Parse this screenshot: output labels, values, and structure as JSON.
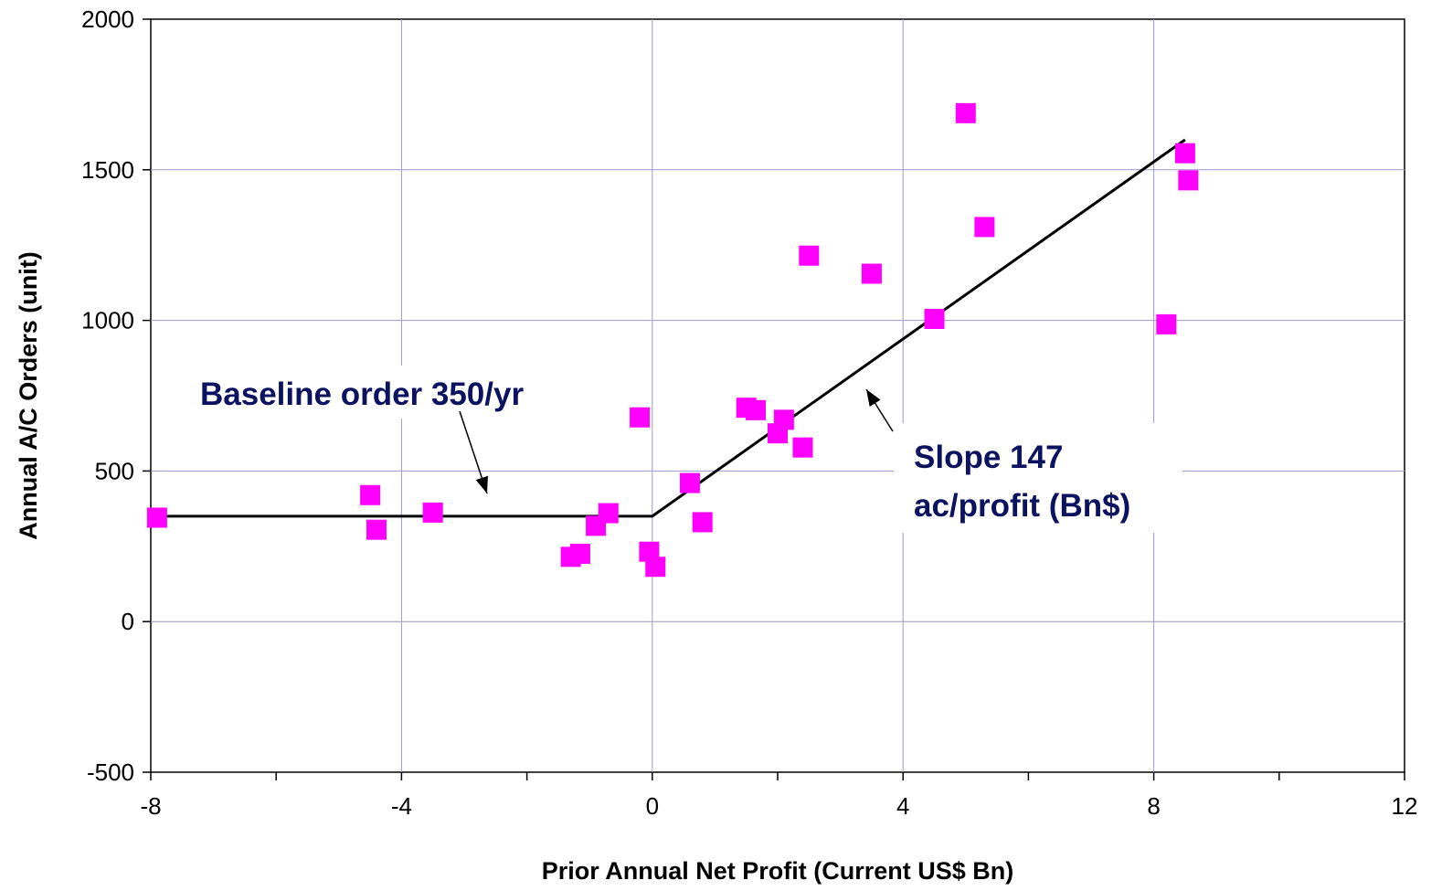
{
  "chart_data": {
    "type": "scatter",
    "title": "",
    "xlabel": "Prior Annual Net Profit (Current US$ Bn)",
    "ylabel": "Annual A/C Orders (unit)",
    "xlim": [
      -8,
      12
    ],
    "ylim": [
      -500,
      2000
    ],
    "x_ticks": [
      "-8",
      "-4",
      "0",
      "4",
      "8",
      "12"
    ],
    "y_ticks": [
      "-500",
      "0",
      "500",
      "1000",
      "1500",
      "2000"
    ],
    "grid": true,
    "colors": {
      "points": "#ff00ff",
      "line": "#000000",
      "grid": "#9999cc",
      "annotation": "#0b1260"
    },
    "points": [
      {
        "x": -7.9,
        "y": 345
      },
      {
        "x": -4.5,
        "y": 420
      },
      {
        "x": -4.4,
        "y": 305
      },
      {
        "x": -3.5,
        "y": 362
      },
      {
        "x": -1.3,
        "y": 215
      },
      {
        "x": -1.15,
        "y": 225
      },
      {
        "x": -0.9,
        "y": 318
      },
      {
        "x": -0.7,
        "y": 360
      },
      {
        "x": -0.2,
        "y": 678
      },
      {
        "x": -0.05,
        "y": 232
      },
      {
        "x": 0.05,
        "y": 182
      },
      {
        "x": 0.6,
        "y": 460
      },
      {
        "x": 0.8,
        "y": 330
      },
      {
        "x": 1.5,
        "y": 710
      },
      {
        "x": 1.65,
        "y": 702
      },
      {
        "x": 2.0,
        "y": 625
      },
      {
        "x": 2.1,
        "y": 670
      },
      {
        "x": 2.4,
        "y": 578
      },
      {
        "x": 2.5,
        "y": 1215
      },
      {
        "x": 3.5,
        "y": 1155
      },
      {
        "x": 4.5,
        "y": 1005
      },
      {
        "x": 5.0,
        "y": 1688
      },
      {
        "x": 5.3,
        "y": 1310
      },
      {
        "x": 8.2,
        "y": 987
      },
      {
        "x": 8.5,
        "y": 1555
      },
      {
        "x": 8.55,
        "y": 1465
      }
    ],
    "fit_line": [
      {
        "x": -8,
        "y": 350
      },
      {
        "x": 0,
        "y": 350
      },
      {
        "x": 8.5,
        "y": 1600
      }
    ],
    "annotations": {
      "baseline": "Baseline order 350/yr",
      "slope_line1": "Slope 147",
      "slope_line2": "ac/profit (Bn$)"
    }
  }
}
